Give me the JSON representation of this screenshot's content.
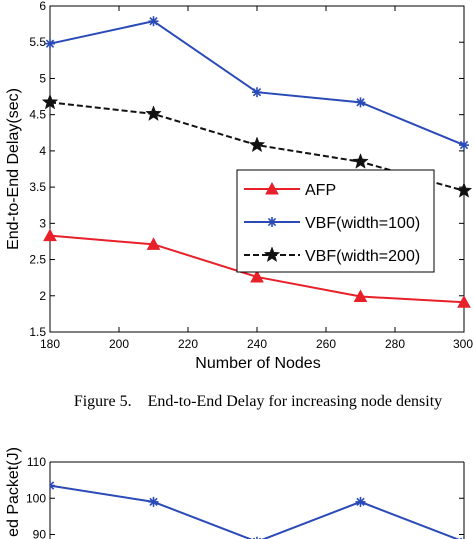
{
  "chart_data": [
    {
      "type": "line",
      "xlabel": "Number of Nodes",
      "ylabel": "End-to-End Delay(sec)",
      "xlim": [
        180,
        300
      ],
      "ylim": [
        1.5,
        6
      ],
      "x_ticks": [
        "180",
        "200",
        "220",
        "240",
        "260",
        "280",
        "300"
      ],
      "y_ticks": [
        "1.5",
        "2",
        "2.5",
        "3",
        "3.5",
        "4",
        "4.5",
        "5",
        "5.5",
        "6"
      ],
      "x": [
        180,
        210,
        240,
        270,
        300
      ],
      "grid": false,
      "legend_position": "center-right",
      "series": [
        {
          "name": "AFP",
          "values": [
            2.83,
            2.71,
            2.26,
            1.99,
            1.91
          ],
          "color": "#e8202a",
          "marker": "triangle",
          "line": "solid"
        },
        {
          "name": "VBF(width=100)",
          "values": [
            5.48,
            5.79,
            4.81,
            4.67,
            4.08
          ],
          "color": "#2a4ab8",
          "marker": "asterisk",
          "line": "solid"
        },
        {
          "name": "VBF(width=200)",
          "values": [
            4.67,
            4.51,
            4.08,
            3.85,
            3.45
          ],
          "color": "#111111",
          "marker": "star",
          "line": "dashed"
        }
      ]
    },
    {
      "type": "line",
      "ylabel": "ed Packet(J)",
      "ylim": [
        90,
        110
      ],
      "y_ticks": [
        "110",
        "100",
        "90"
      ],
      "x": [
        180,
        210,
        240,
        270,
        300
      ],
      "series": [
        {
          "values": [
            103.5,
            99,
            88,
            99,
            88
          ],
          "color": "#2a4ab8",
          "marker": "asterisk",
          "line": "solid"
        }
      ]
    }
  ],
  "caption": "Figure 5.    End-to-End Delay for increasing node density"
}
